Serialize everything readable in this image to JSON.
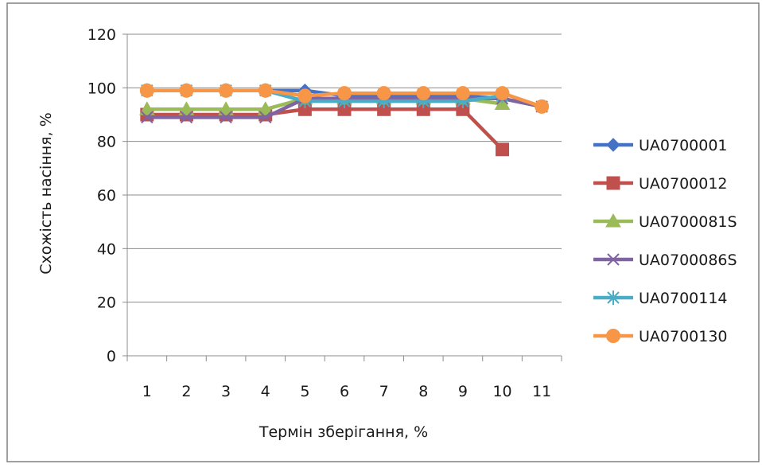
{
  "chart_data": {
    "type": "line",
    "title": "",
    "xlabel": "Термін зберігання, %",
    "ylabel": "Схожість насіння, %",
    "categories": [
      "1",
      "2",
      "3",
      "4",
      "5",
      "6",
      "7",
      "8",
      "9",
      "10",
      "11"
    ],
    "ylim": [
      0,
      120
    ],
    "yticks": [
      "0",
      "20",
      "40",
      "60",
      "80",
      "100",
      "120"
    ],
    "grid": "horizontal",
    "legend": "right",
    "series": [
      {
        "name": "UA0700001",
        "color": "#4472C4",
        "marker": "diamond",
        "values": [
          99,
          99,
          99,
          99,
          99,
          97,
          97,
          97,
          97,
          96,
          93
        ]
      },
      {
        "name": "UA0700012",
        "color": "#C0504D",
        "marker": "square",
        "values": [
          90,
          90,
          90,
          90,
          92,
          92,
          92,
          92,
          92,
          77,
          null
        ]
      },
      {
        "name": "UA0700081S",
        "color": "#9BBB59",
        "marker": "triangle",
        "values": [
          92,
          92,
          92,
          92,
          96,
          96,
          96,
          96,
          96,
          94,
          null
        ]
      },
      {
        "name": "UA0700086S",
        "color": "#8064A2",
        "marker": "x",
        "values": [
          89,
          89,
          89,
          89,
          96,
          96,
          96,
          96,
          96,
          96,
          93
        ]
      },
      {
        "name": "UA0700114",
        "color": "#4BACC6",
        "marker": "star",
        "values": [
          99,
          99,
          99,
          99,
          95,
          95,
          95,
          95,
          95,
          97,
          null
        ]
      },
      {
        "name": "UA0700130",
        "color": "#F79646",
        "marker": "circle",
        "values": [
          99,
          99,
          99,
          99,
          97,
          98,
          98,
          98,
          98,
          98,
          93
        ]
      }
    ]
  }
}
